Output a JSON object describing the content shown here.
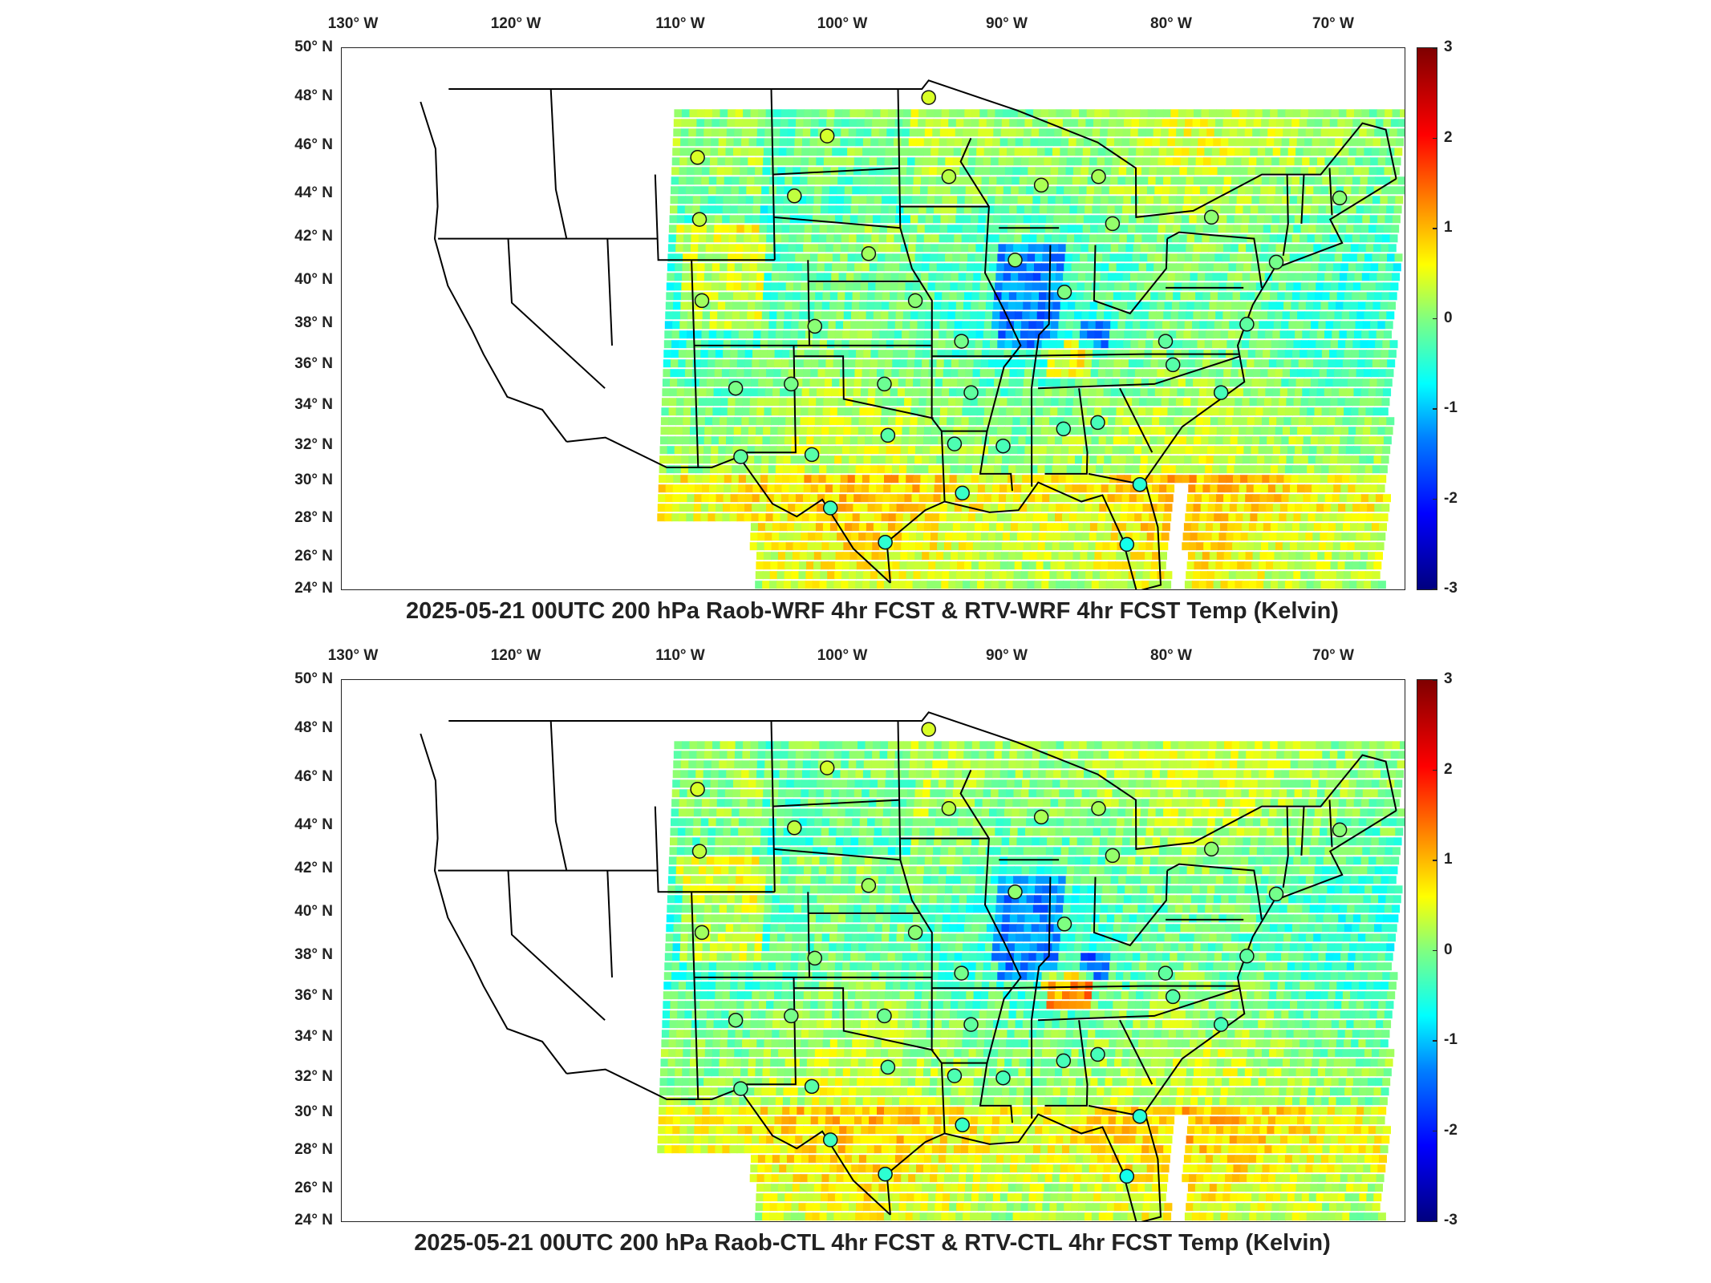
{
  "panels": [
    {
      "title": "2025-05-21 00UTC 200 hPa Raob-WRF 4hr FCST & RTV-WRF 4hr FCST Temp (Kelvin)"
    },
    {
      "title": "2025-05-21 00UTC 200 hPa Raob-CTL 4hr FCST & RTV-CTL 4hr FCST Temp (Kelvin)"
    }
  ],
  "lon_labels": [
    "130° W",
    "120° W",
    "110° W",
    "100° W",
    "90° W",
    "80° W",
    "70° W"
  ],
  "lat_labels": [
    "50° N",
    "48° N",
    "46° N",
    "44° N",
    "42° N",
    "40° N",
    "38° N",
    "36° N",
    "34° N",
    "32° N",
    "30° N",
    "28° N",
    "26° N",
    "24° N"
  ],
  "colorbar": {
    "ticks": [
      "3",
      "2",
      "1",
      "0",
      "-1",
      "-2",
      "-3"
    ],
    "min": -3,
    "max": 3,
    "colormap": "jet"
  },
  "colors": {
    "frame": "#222222",
    "borders": "#000000",
    "field_mid": "#9cf06a"
  },
  "raob_stations": [
    {
      "lon": -94.8,
      "lat": 48.6
    },
    {
      "lon": -100.8,
      "lat": 46.8
    },
    {
      "lon": -108.5,
      "lat": 45.8
    },
    {
      "lon": -93.6,
      "lat": 44.9
    },
    {
      "lon": -88.1,
      "lat": 44.5
    },
    {
      "lon": -84.7,
      "lat": 44.9
    },
    {
      "lon": -102.8,
      "lat": 44.0
    },
    {
      "lon": -108.5,
      "lat": 42.9
    },
    {
      "lon": -98.4,
      "lat": 41.3
    },
    {
      "lon": -89.6,
      "lat": 41.0
    },
    {
      "lon": -83.8,
      "lat": 42.7
    },
    {
      "lon": -77.9,
      "lat": 43.0
    },
    {
      "lon": -73.9,
      "lat": 40.9
    },
    {
      "lon": -70.3,
      "lat": 43.9
    },
    {
      "lon": -108.5,
      "lat": 39.1
    },
    {
      "lon": -95.6,
      "lat": 39.1
    },
    {
      "lon": -86.6,
      "lat": 39.5
    },
    {
      "lon": -101.7,
      "lat": 37.9
    },
    {
      "lon": -92.8,
      "lat": 37.2
    },
    {
      "lon": -80.4,
      "lat": 37.2
    },
    {
      "lon": -75.5,
      "lat": 38.0
    },
    {
      "lon": -106.6,
      "lat": 35.0
    },
    {
      "lon": -103.2,
      "lat": 35.2
    },
    {
      "lon": -97.5,
      "lat": 35.2
    },
    {
      "lon": -92.2,
      "lat": 34.8
    },
    {
      "lon": -79.9,
      "lat": 36.1
    },
    {
      "lon": -76.9,
      "lat": 34.8
    },
    {
      "lon": -86.5,
      "lat": 33.1
    },
    {
      "lon": -84.4,
      "lat": 33.4
    },
    {
      "lon": -97.3,
      "lat": 32.8
    },
    {
      "lon": -106.4,
      "lat": 31.8
    },
    {
      "lon": -102.0,
      "lat": 31.9
    },
    {
      "lon": -93.2,
      "lat": 32.4
    },
    {
      "lon": -90.2,
      "lat": 32.3
    },
    {
      "lon": -100.9,
      "lat": 29.4
    },
    {
      "lon": -92.7,
      "lat": 30.1
    },
    {
      "lon": -81.7,
      "lat": 30.5
    },
    {
      "lon": -97.5,
      "lat": 27.8
    },
    {
      "lon": -82.4,
      "lat": 27.7
    }
  ]
}
